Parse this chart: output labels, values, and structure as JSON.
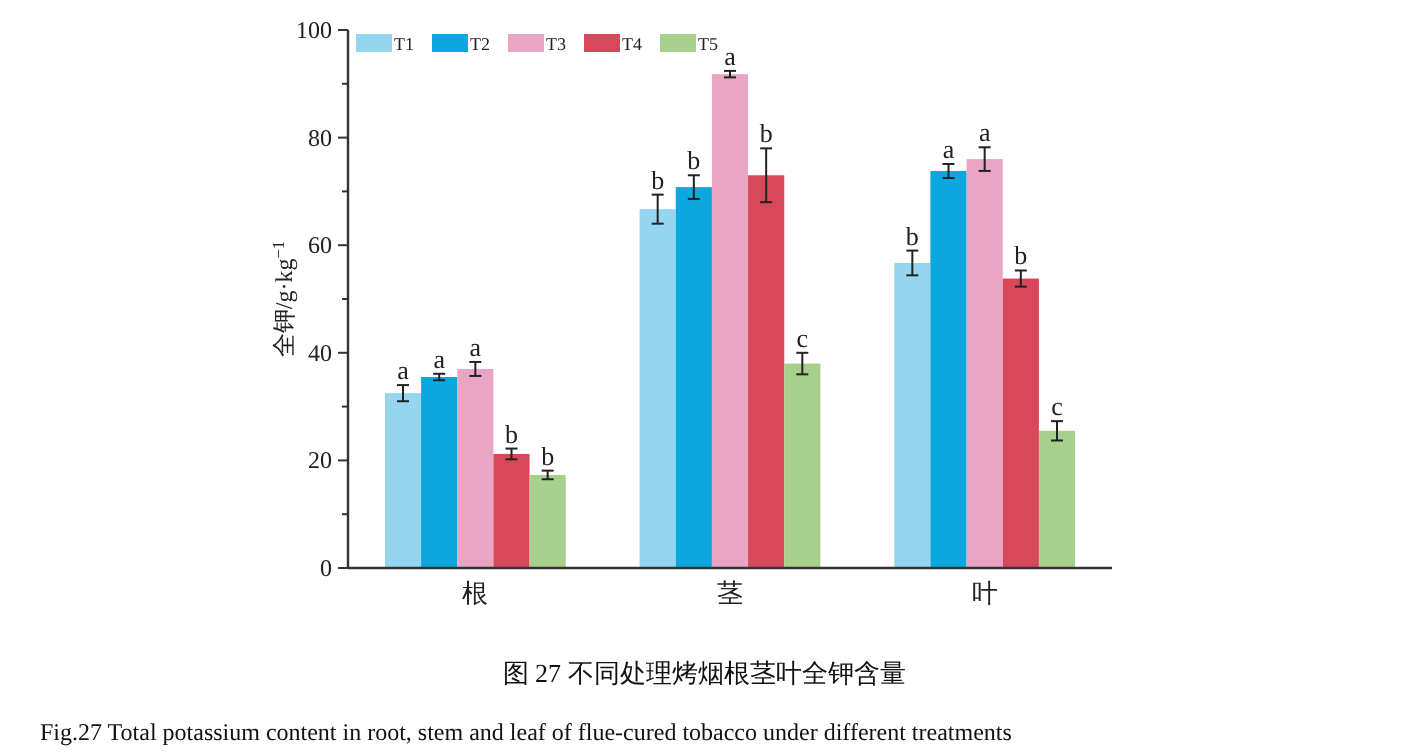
{
  "chart_data": {
    "type": "bar",
    "title": "图 27  不同处理烤烟根茎叶全钾含量",
    "ylabel": "全钾/g·kg$^{−1}$",
    "annotations": [
      "Fig.27 Total potassium content in root, stem and leaf of flue-cured tobacco under different treatments"
    ],
    "categories": [
      "根",
      "茎",
      "叶"
    ],
    "series": [
      {
        "name": "T1",
        "color": "#95d5ef",
        "values": [
          32.5,
          66.7,
          56.7
        ],
        "errors": [
          1.5,
          2.7,
          2.3
        ],
        "value_labels": [
          "a",
          "b",
          "b"
        ]
      },
      {
        "name": "T2",
        "color": "#0aa8de",
        "values": [
          35.5,
          70.8,
          73.8
        ],
        "errors": [
          0.6,
          2.2,
          1.3
        ],
        "value_labels": [
          "a",
          "b",
          "a"
        ]
      },
      {
        "name": "T3",
        "color": "#e8a5c4",
        "values": [
          37,
          91.8,
          76
        ],
        "errors": [
          1.3,
          0.6,
          2.2
        ],
        "value_labels": [
          "a",
          "a",
          "a"
        ]
      },
      {
        "name": "T4",
        "color": "#d9475a",
        "values": [
          21.2,
          73,
          53.8
        ],
        "errors": [
          1,
          5,
          1.5
        ],
        "value_labels": [
          "b",
          "b",
          "b"
        ]
      },
      {
        "name": "T5",
        "color": "#a8d08d",
        "values": [
          17.3,
          38,
          25.5
        ],
        "errors": [
          0.8,
          2,
          1.8
        ],
        "value_labels": [
          "b",
          "c",
          "c"
        ]
      }
    ],
    "ylim": [
      0,
      100
    ],
    "yticks": [
      0,
      {
        "value": 10,
        "label": null
      },
      20,
      {
        "value": 30,
        "label": null
      },
      40,
      {
        "value": 50,
        "label": null
      },
      60,
      {
        "value": 70,
        "label": null
      },
      80,
      {
        "value": 90,
        "label": null
      },
      100
    ],
    "legend": "top left",
    "grid": false
  }
}
